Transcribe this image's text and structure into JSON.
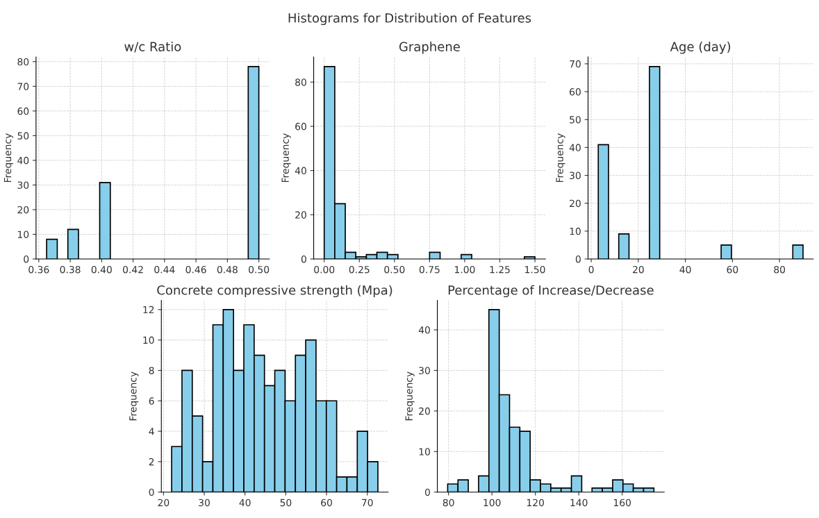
{
  "chart_data": [
    {
      "type": "histogram",
      "title": "w/c Ratio",
      "annotations": [
        "Histograms for Distribution of Features"
      ],
      "ylabel": "Frequency",
      "color": "#87ceeb",
      "grid": true,
      "bins": [
        0.365,
        0.37175,
        0.3785,
        0.38525,
        0.392,
        0.39875,
        0.4055,
        0.41225,
        0.419,
        0.42575,
        0.4325,
        0.43925,
        0.446,
        0.45275,
        0.4595,
        0.46625,
        0.473,
        0.47975,
        0.4865,
        0.49325,
        0.5
      ],
      "values": [
        8,
        0,
        12,
        0,
        0,
        31,
        0,
        0,
        0,
        0,
        0,
        0,
        0,
        0,
        0,
        0,
        0,
        0,
        0,
        78
      ],
      "xlim": [
        0.35825,
        0.50675
      ],
      "ylim": [
        0,
        81.9
      ],
      "xticks": [
        0.36,
        0.38,
        {
          "value": 0.4,
          "label": "0.40"
        },
        0.42,
        0.44,
        0.46,
        0.48,
        {
          "value": 0.5,
          "label": "0.50"
        }
      ],
      "yticks": [
        0,
        10,
        20,
        30,
        40,
        50,
        60,
        70,
        80
      ]
    },
    {
      "type": "histogram",
      "title": "Graphene",
      "ylabel": "Frequency",
      "color": "#87ceeb",
      "grid": true,
      "bins": [
        0,
        0.075,
        0.15,
        0.225,
        0.3,
        0.375,
        0.45,
        0.525,
        0.6,
        0.675,
        0.75,
        0.825,
        0.9,
        0.975,
        1.05,
        1.125,
        1.2,
        1.275,
        1.35,
        1.425,
        1.5
      ],
      "values": [
        87,
        25,
        3,
        1,
        2,
        3,
        2,
        0,
        0,
        0,
        3,
        0,
        0,
        2,
        0,
        0,
        0,
        0,
        0,
        1
      ],
      "xlim": [
        -0.075,
        1.575
      ],
      "ylim": [
        0,
        91.35
      ],
      "xticks": [
        {
          "value": 0,
          "label": "0.00"
        },
        0.25,
        {
          "value": 0.5,
          "label": "0.50"
        },
        0.75,
        {
          "value": 1,
          "label": "1.00"
        },
        1.25,
        {
          "value": 1.5,
          "label": "1.50"
        }
      ],
      "yticks": [
        0,
        20,
        40,
        60,
        80
      ]
    },
    {
      "type": "histogram",
      "title": "Age (day)",
      "ylabel": "Frequency",
      "color": "#87ceeb",
      "grid": true,
      "bins": [
        3,
        7.35,
        11.7,
        16.05,
        20.4,
        24.75,
        29.1,
        33.45,
        37.8,
        42.15,
        46.5,
        50.85,
        55.2,
        59.55,
        63.9,
        68.25,
        72.6,
        76.95,
        81.3,
        85.65,
        90
      ],
      "values": [
        41,
        0,
        9,
        0,
        0,
        69,
        0,
        0,
        0,
        0,
        0,
        0,
        5,
        0,
        0,
        0,
        0,
        0,
        0,
        5
      ],
      "xlim": [
        -1.35,
        94.35
      ],
      "ylim": [
        0,
        72.45
      ],
      "xticks": [
        0,
        20,
        40,
        60,
        80
      ],
      "yticks": [
        0,
        10,
        20,
        30,
        40,
        50,
        60,
        70
      ]
    },
    {
      "type": "histogram",
      "title": "Concrete compressive strength (Mpa)",
      "ylabel": "Frequency",
      "color": "#87ceeb",
      "grid": true,
      "bins": [
        22,
        24.53,
        27.06,
        29.59,
        32.12,
        34.65,
        37.18,
        39.71,
        42.24,
        44.77,
        47.3,
        49.83,
        52.36,
        54.89,
        57.42,
        59.95,
        62.48,
        65.01,
        67.54,
        70.07,
        72.6
      ],
      "values": [
        3,
        8,
        5,
        2,
        11,
        12,
        8,
        11,
        9,
        7,
        8,
        6,
        9,
        10,
        6,
        6,
        1,
        1,
        4,
        2
      ],
      "xlim": [
        19.47,
        75.13
      ],
      "ylim": [
        0,
        12.6
      ],
      "xticks": [
        20,
        30,
        40,
        50,
        60,
        70
      ],
      "yticks": [
        0,
        2,
        4,
        6,
        8,
        10,
        12
      ]
    },
    {
      "type": "histogram",
      "title": "Percentage of Increase/Decrease",
      "ylabel": "Frequency",
      "color": "#87ceeb",
      "grid": true,
      "bins": [
        79.6,
        84.35,
        89.1,
        93.85,
        98.6,
        103.35,
        108.1,
        112.85,
        117.6,
        122.35,
        127.1,
        131.85,
        136.6,
        141.35,
        146.1,
        150.85,
        155.6,
        160.35,
        165.1,
        169.85,
        174.6
      ],
      "values": [
        2,
        3,
        0,
        4,
        45,
        24,
        16,
        15,
        3,
        2,
        1,
        1,
        4,
        0,
        1,
        1,
        3,
        2,
        1,
        1
      ],
      "xlim": [
        74.85,
        179.35
      ],
      "ylim": [
        0,
        47.25
      ],
      "xticks": [
        80,
        100,
        120,
        140,
        160
      ],
      "yticks": [
        0,
        10,
        20,
        30,
        40
      ]
    }
  ]
}
